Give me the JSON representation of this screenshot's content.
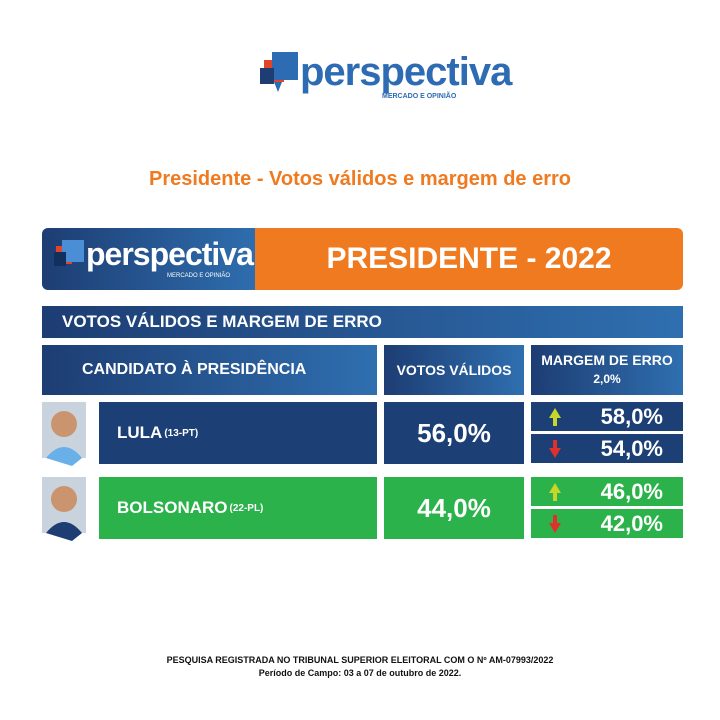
{
  "logo": {
    "name": "perspectiva",
    "tagline": "MERCADO E OPINIÃO"
  },
  "subtitle": "Presidente - Votos válidos e margem de erro",
  "banner": {
    "logo_name": "perspectiva",
    "logo_tagline": "MERCADO E OPINIÃO",
    "title": "PRESIDENTE - 2022"
  },
  "section": "VOTOS VÁLIDOS E MARGEM DE ERRO",
  "table": {
    "headers": {
      "candidate": "CANDIDATO À PRESIDÊNCIA",
      "votes": "VOTOS VÁLIDOS",
      "margin": "MARGEM DE ERRO",
      "margin_value": "2,0%"
    },
    "rows": [
      {
        "name": "LULA",
        "party": "(13-PT)",
        "votes": "56,0%",
        "upper": "58,0%",
        "lower": "54,0%"
      },
      {
        "name": "BOLSONARO",
        "party": "(22-PL)",
        "votes": "44,0%",
        "upper": "46,0%",
        "lower": "42,0%"
      }
    ]
  },
  "footer": {
    "line1": "PESQUISA REGISTRADA NO TRIBUNAL SUPERIOR ELEITORAL COM O Nº AM-07993/2022",
    "line2": "Período de Campo: 03 a 07 de outubro de 2022."
  }
}
